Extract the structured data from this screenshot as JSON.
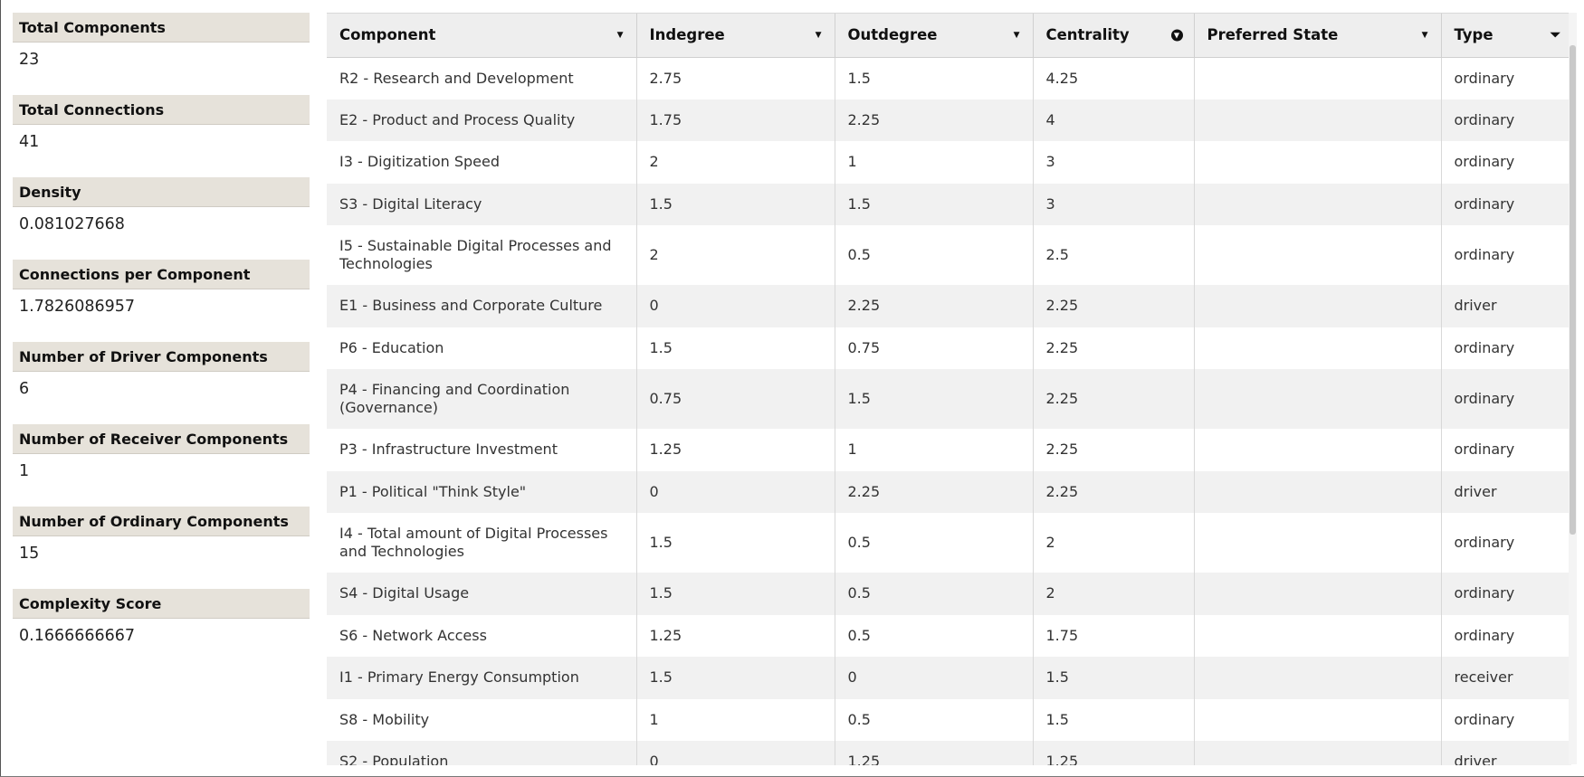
{
  "stats": [
    {
      "label": "Total Components",
      "value": "23"
    },
    {
      "label": "Total Connections",
      "value": "41"
    },
    {
      "label": "Density",
      "value": "0.081027668"
    },
    {
      "label": "Connections per Component",
      "value": "1.7826086957"
    },
    {
      "label": "Number of Driver Components",
      "value": "6"
    },
    {
      "label": "Number of Receiver Components",
      "value": "1"
    },
    {
      "label": "Number of Ordinary Components",
      "value": "15"
    },
    {
      "label": "Complexity Score",
      "value": "0.1666666667"
    }
  ],
  "table": {
    "headers": [
      {
        "label": "Component",
        "icon": "caret-down-icon"
      },
      {
        "label": "Indegree",
        "icon": "caret-down-icon"
      },
      {
        "label": "Outdegree",
        "icon": "caret-down-icon"
      },
      {
        "label": "Centrality",
        "icon": "sort-descending-circle-icon"
      },
      {
        "label": "Preferred State",
        "icon": "caret-down-icon"
      },
      {
        "label": "Type",
        "icon": "filter-icon"
      }
    ],
    "rows": [
      [
        "R2 - Research and Development",
        "2.75",
        "1.5",
        "4.25",
        "",
        "ordinary"
      ],
      [
        "E2 - Product and Process Quality",
        "1.75",
        "2.25",
        "4",
        "",
        "ordinary"
      ],
      [
        "I3 - Digitization Speed",
        "2",
        "1",
        "3",
        "",
        "ordinary"
      ],
      [
        "S3 - Digital Literacy",
        "1.5",
        "1.5",
        "3",
        "",
        "ordinary"
      ],
      [
        "I5 - Sustainable Digital Processes and Technologies",
        "2",
        "0.5",
        "2.5",
        "",
        "ordinary"
      ],
      [
        "E1 - Business and Corporate Culture",
        "0",
        "2.25",
        "2.25",
        "",
        "driver"
      ],
      [
        "P6 - Education",
        "1.5",
        "0.75",
        "2.25",
        "",
        "ordinary"
      ],
      [
        "P4 - Financing and Coordination (Governance)",
        "0.75",
        "1.5",
        "2.25",
        "",
        "ordinary"
      ],
      [
        "P3 - Infrastructure Investment",
        "1.25",
        "1",
        "2.25",
        "",
        "ordinary"
      ],
      [
        "P1 - Political \"Think Style\"",
        "0",
        "2.25",
        "2.25",
        "",
        "driver"
      ],
      [
        "I4 - Total amount of Digital Processes and Technologies",
        "1.5",
        "0.5",
        "2",
        "",
        "ordinary"
      ],
      [
        "S4 - Digital Usage",
        "1.5",
        "0.5",
        "2",
        "",
        "ordinary"
      ],
      [
        "S6 - Network Access",
        "1.25",
        "0.5",
        "1.75",
        "",
        "ordinary"
      ],
      [
        "I1 - Primary Energy Consumption",
        "1.5",
        "0",
        "1.5",
        "",
        "receiver"
      ],
      [
        "S8 - Mobility",
        "1",
        "0.5",
        "1.5",
        "",
        "ordinary"
      ],
      [
        "S2 - Population",
        "0",
        "1.25",
        "1.25",
        "",
        "driver"
      ]
    ]
  }
}
